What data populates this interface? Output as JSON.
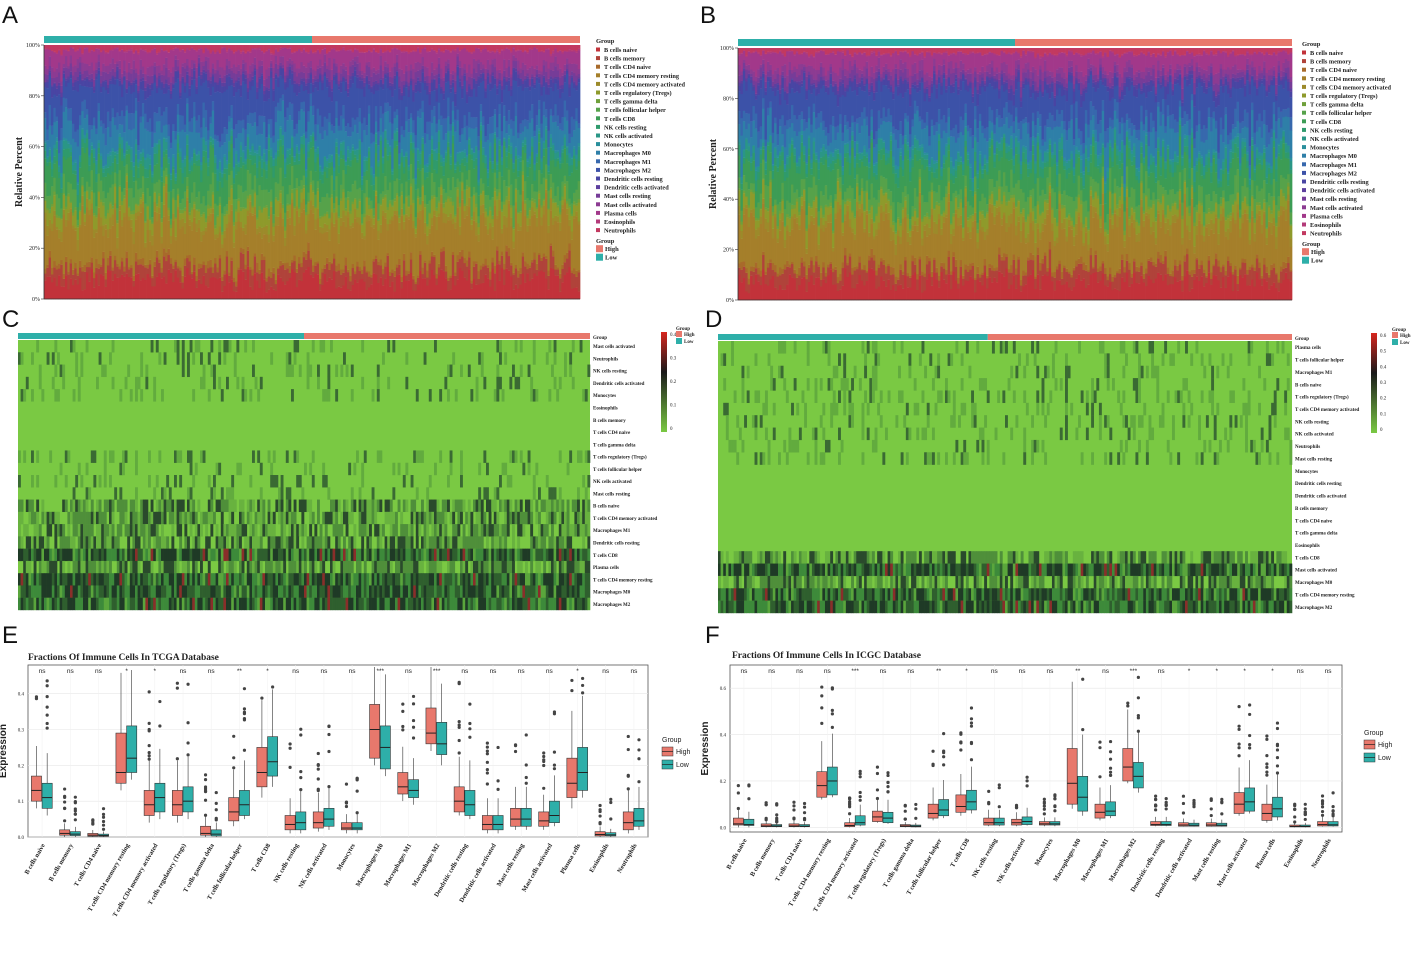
{
  "panels": {
    "A": {
      "letter": "A",
      "ylabel": "Relative Percent",
      "yticks": [
        "0%",
        "20%",
        "40%",
        "60%",
        "80%",
        "100%"
      ],
      "legend_title": "Group"
    },
    "B": {
      "letter": "B",
      "ylabel": "Relative Percent",
      "yticks": [
        "0%",
        "20%",
        "40%",
        "60%",
        "80%",
        "100%"
      ],
      "legend_title": "Group"
    },
    "C": {
      "letter": "C",
      "legend_title": "Group",
      "color_ticks": [
        "0.4",
        "0.3",
        "0.2",
        "0.1",
        "0"
      ]
    },
    "D": {
      "letter": "D",
      "legend_title": "Group",
      "color_ticks": [
        "0.6",
        "0.5",
        "0.4",
        "0.3",
        "0.2",
        "0.1",
        "0"
      ]
    },
    "E": {
      "letter": "E",
      "title": "Fractions Of Immune Cells In TCGA Database",
      "ylabel": "Expression",
      "yticks": [
        "0.0",
        "0.1",
        "0.2",
        "0.3",
        "0.4"
      ],
      "legend_title": "Group"
    },
    "F": {
      "letter": "F",
      "title": "Fractions Of Immune Cells In ICGC Database",
      "ylabel": "Expression",
      "yticks": [
        "0.0",
        "0.2",
        "0.4",
        "0.6"
      ],
      "legend_title": "Group"
    }
  },
  "groups": [
    "High",
    "Low"
  ],
  "group_colors": {
    "High": "#e8786c",
    "Low": "#2eafa9"
  },
  "cell_types": [
    "B cells naive",
    "B cells memory",
    "T cells CD4 naive",
    "T cells CD4 memory resting",
    "T cells CD4 memory activated",
    "T cells regulatory (Tregs)",
    "T cells gamma delta",
    "T cells follicular helper",
    "T cells CD8",
    "NK cells resting",
    "NK cells activated",
    "Monocytes",
    "Macrophages M0",
    "Macrophages M1",
    "Macrophages M2",
    "Dendritic cells resting",
    "Dendritic cells activated",
    "Mast cells resting",
    "Mast cells activated",
    "Plasma cells",
    "Eosinophils",
    "Neutrophils"
  ],
  "cell_colors": [
    "#c2323a",
    "#b0433a",
    "#a86a2b",
    "#a57f2a",
    "#9c8a2a",
    "#8e9a2b",
    "#6fa03a",
    "#56a24a",
    "#3c9c55",
    "#2f9a6c",
    "#2a9686",
    "#2a8f9c",
    "#2e7fa8",
    "#3768ad",
    "#3c52a8",
    "#4945a3",
    "#5d3f9e",
    "#763c98",
    "#8c3b92",
    "#a2388a",
    "#b33a79",
    "#c23960"
  ],
  "heatmap_c_rows": [
    "Mast cells activated",
    "Neutrophils",
    "NK cells resting",
    "Dendritic cells activated",
    "Monocytes",
    "Eosinophils",
    "B cells memory",
    "T cells CD4 naive",
    "T cells gamma delta",
    "T cells regulatory (Tregs)",
    "T cells follicular helper",
    "NK cells activated",
    "Mast cells resting",
    "B cells naive",
    "T cells CD4 memory activated",
    "Macrophages M1",
    "Dendritic cells resting",
    "T cells CD8",
    "Plasma cells",
    "T cells CD4 memory resting",
    "Macrophages M0",
    "Macrophages M2"
  ],
  "heatmap_d_rows": [
    "Plasma cells",
    "T cells follicular helper",
    "Macrophages M1",
    "B cells naive",
    "T cells regulatory (Tregs)",
    "T cells CD4 memory activated",
    "NK cells resting",
    "NK cells activated",
    "Neutrophils",
    "Mast cells resting",
    "Monocytes",
    "Dendritic cells resting",
    "Dendritic cells activated",
    "B cells memory",
    "T cells CD4 naive",
    "T cells gamma delta",
    "Eosinophils",
    "T cells CD8",
    "Mast cells activated",
    "Macrophages M0",
    "T cells CD4 memory resting",
    "Macrophages M2"
  ],
  "chart_data": [
    {
      "panel": "E",
      "type": "boxplot",
      "title": "Fractions Of Immune Cells In TCGA Database",
      "xlabel": "",
      "ylabel": "Expression",
      "ylim": [
        0,
        0.48
      ],
      "categories": [
        "B cells naive",
        "B cells memory",
        "T cells CD4 naive",
        "T cells CD4 memory resting",
        "T cells CD4 memory activated",
        "T cells regulatory (Tregs)",
        "T cells gamma delta",
        "T cells follicular helper",
        "T cells CD8",
        "NK cells resting",
        "NK cells activated",
        "Monocytes",
        "Macrophages M0",
        "Macrophages M1",
        "Macrophages M2",
        "Dendritic cells resting",
        "Dendritic cells activated",
        "Mast cells resting",
        "Mast cells activated",
        "Plasma cells",
        "Eosinophils",
        "Neutrophils"
      ],
      "significance": [
        "ns",
        "ns",
        "ns",
        "*",
        "*",
        "ns",
        "ns",
        "**",
        "*",
        "ns",
        "ns",
        "ns",
        "***",
        "ns",
        "***",
        "ns",
        "ns",
        "ns",
        "ns",
        "*",
        "ns",
        "ns"
      ],
      "series": [
        {
          "name": "High",
          "boxes": [
            [
              0.08,
              0.1,
              0.13,
              0.17
            ],
            [
              0.0,
              0.005,
              0.01,
              0.02
            ],
            [
              0.0,
              0.002,
              0.005,
              0.01
            ],
            [
              0.13,
              0.15,
              0.18,
              0.29
            ],
            [
              0.04,
              0.06,
              0.09,
              0.13
            ],
            [
              0.04,
              0.06,
              0.09,
              0.13
            ],
            [
              0.0,
              0.005,
              0.01,
              0.03
            ],
            [
              0.03,
              0.045,
              0.07,
              0.11
            ],
            [
              0.11,
              0.14,
              0.18,
              0.25
            ],
            [
              0.01,
              0.02,
              0.035,
              0.06
            ],
            [
              0.015,
              0.025,
              0.04,
              0.07
            ],
            [
              0.01,
              0.02,
              0.025,
              0.04
            ],
            [
              0.2,
              0.22,
              0.3,
              0.37
            ],
            [
              0.1,
              0.12,
              0.14,
              0.18
            ],
            [
              0.24,
              0.26,
              0.29,
              0.36
            ],
            [
              0.06,
              0.07,
              0.1,
              0.14
            ],
            [
              0.01,
              0.02,
              0.035,
              0.06
            ],
            [
              0.02,
              0.03,
              0.05,
              0.08
            ],
            [
              0.02,
              0.03,
              0.045,
              0.07
            ],
            [
              0.08,
              0.11,
              0.15,
              0.22
            ],
            [
              0.0,
              0.003,
              0.007,
              0.015
            ],
            [
              0.01,
              0.02,
              0.04,
              0.07
            ]
          ]
        },
        {
          "name": "Low",
          "boxes": [
            [
              0.06,
              0.08,
              0.11,
              0.15
            ],
            [
              0.0,
              0.004,
              0.008,
              0.015
            ],
            [
              0.0,
              0.002,
              0.004,
              0.008
            ],
            [
              0.16,
              0.18,
              0.22,
              0.31
            ],
            [
              0.05,
              0.07,
              0.11,
              0.15
            ],
            [
              0.05,
              0.07,
              0.1,
              0.14
            ],
            [
              0.0,
              0.003,
              0.008,
              0.02
            ],
            [
              0.05,
              0.06,
              0.09,
              0.13
            ],
            [
              0.14,
              0.17,
              0.21,
              0.28
            ],
            [
              0.01,
              0.02,
              0.04,
              0.07
            ],
            [
              0.02,
              0.03,
              0.05,
              0.08
            ],
            [
              0.01,
              0.02,
              0.025,
              0.04
            ],
            [
              0.17,
              0.19,
              0.25,
              0.31
            ],
            [
              0.09,
              0.11,
              0.13,
              0.16
            ],
            [
              0.2,
              0.23,
              0.26,
              0.32
            ],
            [
              0.05,
              0.06,
              0.09,
              0.13
            ],
            [
              0.01,
              0.02,
              0.035,
              0.06
            ],
            [
              0.02,
              0.03,
              0.05,
              0.08
            ],
            [
              0.03,
              0.04,
              0.06,
              0.1
            ],
            [
              0.11,
              0.13,
              0.18,
              0.25
            ],
            [
              0.0,
              0.003,
              0.006,
              0.012
            ],
            [
              0.02,
              0.03,
              0.045,
              0.08
            ]
          ]
        }
      ]
    },
    {
      "panel": "F",
      "type": "boxplot",
      "title": "Fractions Of Immune Cells In ICGC Database",
      "xlabel": "",
      "ylabel": "Expression",
      "ylim": [
        -0.02,
        0.7
      ],
      "categories": [
        "B cells naive",
        "B cells memory",
        "T cells CD4 naive",
        "T cells CD4 memory resting",
        "T cells CD4 memory activated",
        "T cells regulatory (Tregs)",
        "T cells gamma delta",
        "T cells follicular helper",
        "T cells CD8",
        "NK cells resting",
        "NK cells activated",
        "Monocytes",
        "Macrophages M0",
        "Macrophages M1",
        "Macrophages M2",
        "Dendritic cells resting",
        "Dendritic cells activated",
        "Mast cells resting",
        "Mast cells activated",
        "Plasma cells",
        "Eosinophils",
        "Neutrophils"
      ],
      "significance": [
        "ns",
        "ns",
        "ns",
        "ns",
        "***",
        "ns",
        "ns",
        "**",
        "*",
        "ns",
        "ns",
        "ns",
        "**",
        "ns",
        "***",
        "ns",
        "*",
        "*",
        "*",
        "*",
        "ns",
        "ns"
      ],
      "series": [
        {
          "name": "High",
          "boxes": [
            [
              0.0,
              0.01,
              0.015,
              0.04
            ],
            [
              0.0,
              0.003,
              0.006,
              0.015
            ],
            [
              0.0,
              0.003,
              0.006,
              0.015
            ],
            [
              0.12,
              0.13,
              0.18,
              0.24
            ],
            [
              0.0,
              0.003,
              0.008,
              0.02
            ],
            [
              0.02,
              0.025,
              0.045,
              0.07
            ],
            [
              0.0,
              0.003,
              0.006,
              0.012
            ],
            [
              0.03,
              0.04,
              0.06,
              0.1
            ],
            [
              0.05,
              0.065,
              0.09,
              0.14
            ],
            [
              0.005,
              0.01,
              0.02,
              0.04
            ],
            [
              0.005,
              0.01,
              0.02,
              0.035
            ],
            [
              0.005,
              0.01,
              0.015,
              0.025
            ],
            [
              0.08,
              0.1,
              0.19,
              0.34
            ],
            [
              0.03,
              0.04,
              0.065,
              0.1
            ],
            [
              0.19,
              0.2,
              0.26,
              0.34
            ],
            [
              0.005,
              0.008,
              0.012,
              0.025
            ],
            [
              0.003,
              0.005,
              0.01,
              0.02
            ],
            [
              0.003,
              0.005,
              0.01,
              0.02
            ],
            [
              0.05,
              0.06,
              0.1,
              0.15
            ],
            [
              0.02,
              0.03,
              0.06,
              0.1
            ],
            [
              0.0,
              0.002,
              0.004,
              0.01
            ],
            [
              0.003,
              0.006,
              0.012,
              0.025
            ]
          ]
        },
        {
          "name": "Low",
          "boxes": [
            [
              0.0,
              0.008,
              0.012,
              0.035
            ],
            [
              0.0,
              0.003,
              0.006,
              0.012
            ],
            [
              0.0,
              0.003,
              0.005,
              0.012
            ],
            [
              0.13,
              0.14,
              0.2,
              0.26
            ],
            [
              0.005,
              0.01,
              0.02,
              0.05
            ],
            [
              0.015,
              0.02,
              0.04,
              0.065
            ],
            [
              0.0,
              0.002,
              0.005,
              0.01
            ],
            [
              0.04,
              0.05,
              0.075,
              0.12
            ],
            [
              0.06,
              0.075,
              0.11,
              0.16
            ],
            [
              0.005,
              0.01,
              0.02,
              0.04
            ],
            [
              0.008,
              0.012,
              0.025,
              0.045
            ],
            [
              0.005,
              0.01,
              0.015,
              0.025
            ],
            [
              0.05,
              0.07,
              0.13,
              0.22
            ],
            [
              0.04,
              0.05,
              0.07,
              0.11
            ],
            [
              0.15,
              0.17,
              0.22,
              0.28
            ],
            [
              0.005,
              0.008,
              0.012,
              0.025
            ],
            [
              0.003,
              0.005,
              0.009,
              0.018
            ],
            [
              0.003,
              0.005,
              0.009,
              0.018
            ],
            [
              0.06,
              0.07,
              0.11,
              0.17
            ],
            [
              0.03,
              0.045,
              0.08,
              0.13
            ],
            [
              0.0,
              0.002,
              0.004,
              0.01
            ],
            [
              0.003,
              0.006,
              0.011,
              0.025
            ]
          ]
        }
      ]
    }
  ]
}
